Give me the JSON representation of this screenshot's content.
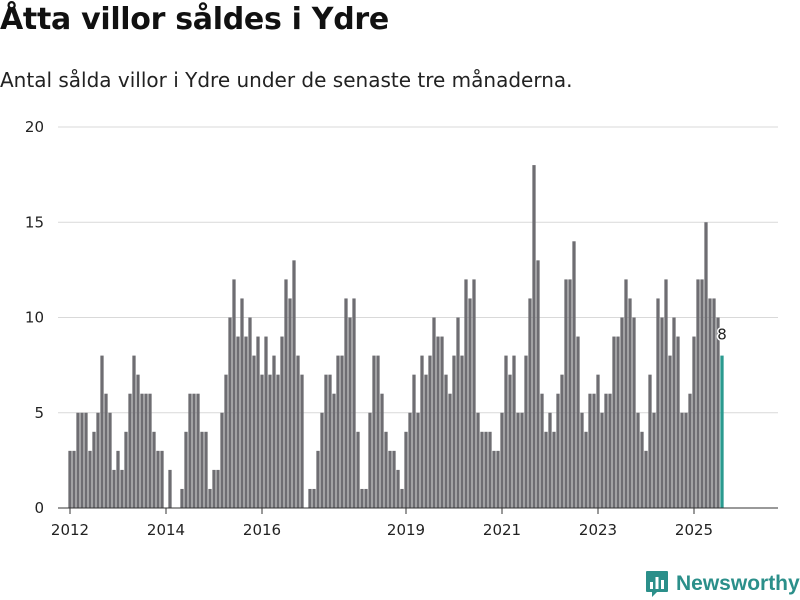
{
  "header": {
    "title": "Åtta villor såldes i Ydre",
    "subtitle": "Antal sålda villor i Ydre under de senaste tre månaderna."
  },
  "brand": {
    "name": "Newsworthy",
    "color": "#2b8f8a"
  },
  "colors": {
    "bar": "#6e6d72",
    "highlight": "#2a9a8f",
    "grid": "#d9d9d9",
    "axis": "#333333"
  },
  "chart_data": {
    "type": "bar",
    "title": "Åtta villor såldes i Ydre",
    "subtitle": "Antal sålda villor i Ydre under de senaste tre månaderna.",
    "xlabel": "",
    "ylabel": "",
    "ylim": [
      0,
      20
    ],
    "yticks": [
      "0",
      "5",
      "10",
      "15",
      "20"
    ],
    "x_start": 2012.0,
    "x_step": 0.0833333,
    "x_range": [
      2011.75,
      2026.75
    ],
    "xticks": [
      {
        "label": "2012",
        "x": 2012.0
      },
      {
        "label": "2014",
        "x": 2014.0
      },
      {
        "label": "2016",
        "x": 2016.0
      },
      {
        "label": "2019",
        "x": 2019.0
      },
      {
        "label": "2021",
        "x": 2021.0
      },
      {
        "label": "2023",
        "x": 2023.0
      },
      {
        "label": "2025",
        "x": 2025.0
      }
    ],
    "grid": true,
    "values": [
      3,
      3,
      5,
      5,
      5,
      3,
      4,
      5,
      8,
      6,
      5,
      2,
      3,
      2,
      4,
      6,
      8,
      7,
      6,
      6,
      6,
      4,
      3,
      3,
      0,
      2,
      0,
      0,
      1,
      4,
      6,
      6,
      6,
      4,
      4,
      1,
      2,
      2,
      5,
      7,
      10,
      12,
      9,
      11,
      9,
      10,
      8,
      9,
      7,
      9,
      7,
      8,
      7,
      9,
      12,
      11,
      13,
      8,
      7,
      0,
      1,
      1,
      3,
      5,
      7,
      7,
      6,
      8,
      8,
      11,
      10,
      11,
      4,
      1,
      1,
      5,
      8,
      8,
      6,
      4,
      3,
      3,
      2,
      1,
      4,
      5,
      7,
      5,
      8,
      7,
      8,
      10,
      9,
      9,
      7,
      6,
      8,
      10,
      8,
      12,
      11,
      12,
      5,
      4,
      4,
      4,
      3,
      3,
      5,
      8,
      7,
      8,
      5,
      5,
      8,
      11,
      18,
      13,
      6,
      4,
      5,
      4,
      6,
      7,
      12,
      12,
      14,
      9,
      5,
      4,
      6,
      6,
      7,
      5,
      6,
      6,
      9,
      9,
      10,
      12,
      11,
      10,
      5,
      4,
      3,
      7,
      5,
      11,
      10,
      12,
      8,
      10,
      9,
      5,
      5,
      6,
      9,
      12,
      12,
      15,
      11,
      11,
      10,
      8
    ],
    "highlight_last": true,
    "annotation": {
      "label": "8"
    }
  }
}
